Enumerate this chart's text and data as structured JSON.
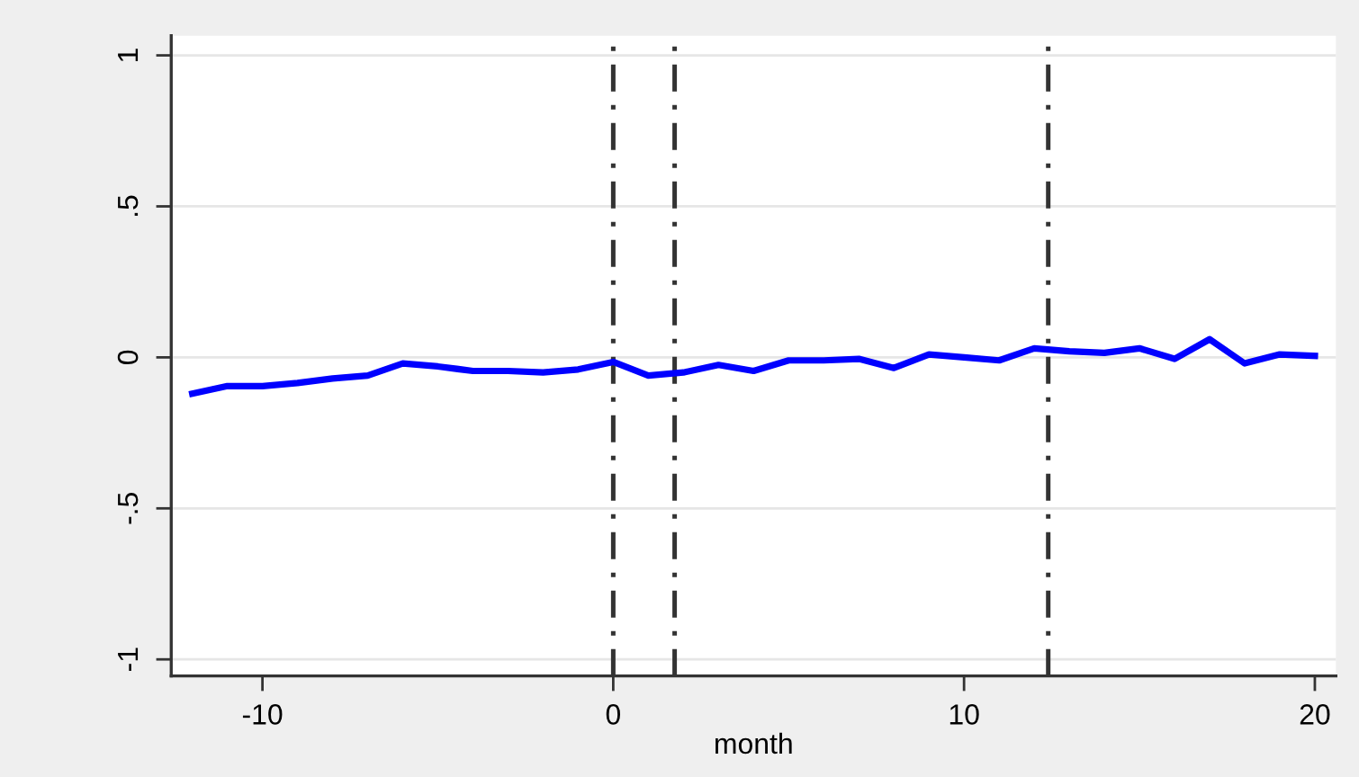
{
  "chart_data": {
    "type": "line",
    "xlabel": "month",
    "x": [
      -12,
      -11,
      -10,
      -9,
      -8,
      -7,
      -6,
      -5,
      -4,
      -3,
      -2,
      -1,
      0,
      1,
      2,
      3,
      4,
      5,
      6,
      7,
      8,
      9,
      10,
      11,
      12,
      13,
      14,
      15,
      16,
      17,
      18,
      19,
      20
    ],
    "series": [
      {
        "color": "#0000ff",
        "values": [
          -0.12,
          -0.095,
          -0.095,
          -0.085,
          -0.07,
          -0.06,
          -0.02,
          -0.03,
          -0.045,
          -0.045,
          -0.05,
          -0.04,
          -0.015,
          -0.06,
          -0.05,
          -0.025,
          -0.045,
          -0.01,
          -0.01,
          -0.005,
          -0.035,
          0.01,
          0.0,
          -0.01,
          0.03,
          0.02,
          0.015,
          0.03,
          -0.005,
          0.06,
          -0.02,
          0.01,
          0.005
        ]
      }
    ],
    "xlim": [
      -12.6,
      20.6
    ],
    "xticks": [
      -10,
      0,
      10,
      20
    ],
    "ylim": [
      -1.055,
      1.065
    ],
    "yticks": [
      {
        "value": -1,
        "label": "-1"
      },
      {
        "value": -0.5,
        "label": "-.5"
      },
      0,
      {
        "value": 0.5,
        "label": ".5"
      },
      1
    ],
    "grid": "y",
    "line_style": "solid",
    "marker": "none",
    "ref_lines": [
      {
        "axis": "x",
        "value": 0,
        "color": "#333333",
        "line_style": "dashdot"
      },
      {
        "axis": "x",
        "value": 1.75,
        "color": "#333333",
        "line_style": "dashdot"
      },
      {
        "axis": "x",
        "value": 12.4,
        "color": "#333333",
        "line_style": "dashdot"
      }
    ]
  }
}
